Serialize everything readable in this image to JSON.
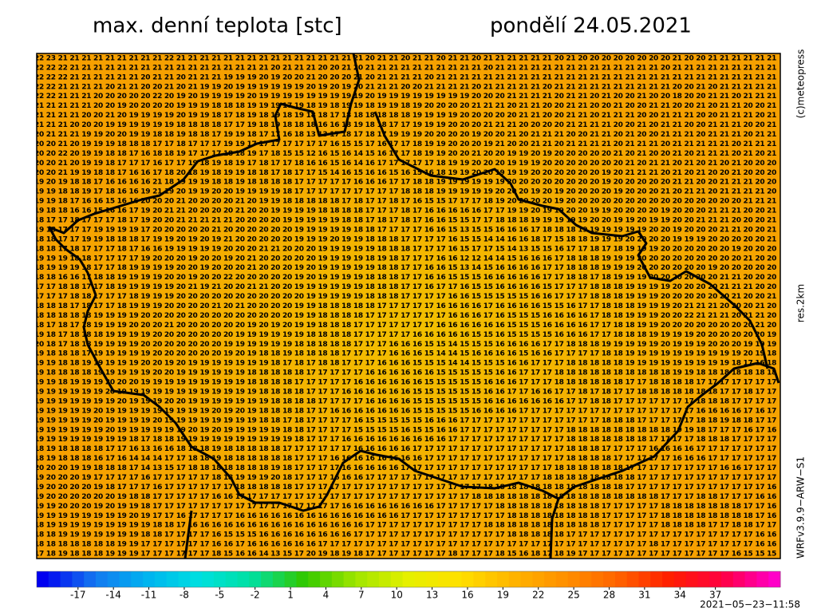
{
  "header": {
    "title": "max. denní teplota [stc]",
    "date": "pondělí 24.05.2021"
  },
  "side": {
    "copyright": "(c)meteopress",
    "resolution": "res.2km",
    "model": "WRFv3.9.9−ARW−S1"
  },
  "footer": {
    "run": "2021−05−23−11:58"
  },
  "grid": {
    "rows": [
      "22 23 21 21 21 21 21 21 21 21 21 22 21 21 21 21 21 21 21 21 21 21 21 21 21 21 21 21 20 21 21 20 21 21 20 21 21 20 21 21 21 21 21 21 20 21 20 20 20 20 20 20 20 20 21 20 20 21 21 21 21 21 21",
      "22 22 22 21 21 21 21 21 21 21 21 21 21 21 21 21 21 21 21 21 20 21 21 21 20 20 21 20 21 21 21 21 21 21 21 21 21 21 20 21 21 21 21 21 21 21 21 21 21 21 21 21 21 20 21 21 21 21 21 21 21 21 21",
      "22 22 22 21 21 21 21 21 21 20 21 21 20 21 21 21 19 19 19 20 19 20 20 21 20 20 20 21 20 21 21 21 21 20 21 21 21 21 21 21 21 21 21 21 21 21 21 21 21 21 21 21 21 21 21 21 21 21 21 21 21 21 21",
      "22 22 21 21 21 21 20 21 21 20 20 21 20 21 19 19 20 19 19 19 19 19 19 20 19 20 19 20 21 21 21 20 20 21 21 21 21 20 21 21 21 21 21 20 21 21 21 21 21 21 21 21 21 21 20 20 21 20 21 21 21 21 21",
      "22 22 21 21 21 20 20 20 20 20 22 20 19 20 19 19 19 19 20 19 19 19 19 19 19 19 19 19 20 19 19 19 19 19 19 19 19 20 20 20 21 21 21 21 20 21 21 20 21 20 20 21 20 20 18 20 20 21 21 20 21 21 21",
      "21 21 21 21 21 20 20 19 20 20 20 20 19 19 19 18 18 18 19 19 19 17 19 18 19 18 19 19 18 19 19 18 19 20 20 20 20 21 21 21 20 21 21 20 20 21 21 20 20 21 20 20 21 21 20 20 21 20 21 21 20 20 21",
      "21 21 21 21 20 20 21 20 19 19 19 19 20 19 19 18 17 18 19 18 19 18 19 18 18 17 18 18 18 18 18 18 19 19 19 19 20 20 20 20 20 21 21 20 20 21 21 20 21 21 21 20 20 21 21 21 20 20 21 21 21 20 21",
      "21 21 21 20 20 20 19 19 19 19 19 19 18 18 18 18 17 17 19 18 19 18 18 18 16 16 18 19 18 18 17 17 19 19 19 20 20 20 21 21 21 20 20 20 20 21 21 21 21 20 20 21 20 21 21 20 20 21 21 21 20 20 21",
      "20 21 21 21 19 19 20 20 19 19 18 18 19 18 18 17 19 19 18 17 17 16 18 13 13 17 18 17 18 17 19 19 19 20 20 20 20 19 20 20 21 20 21 21 21 20 20 21 21 20 21 20 20 21 21 21 20 21 21 21 20 21 21",
      "20 20 21 20 19 19 19 18 18 18 17 17 18 17 17 17 19 19 17 17 17 17 17 17 17 16 15 15 17 16 17 17 18 19 19 20 20 20 19 21 20 20 21 21 20 21 21 21 21 20 21 21 21 20 21 21 21 21 21 20 21 21 21",
      "20 20 22 20 19 19 18 18 17 16 18 18 19 17 17 17 18 18 19 17 18 15 15 12 16 15 16 14 15 16 17 17 18 19 19 20 20 21 20 20 19 19 20 19 20 20 20 20 20 21 20 21 20 20 21 20 21 21 21 20 21 20 21",
      "20 20 21 20 19 19 18 17 17 17 16 17 17 19 18 19 18 19 17 18 17 17 18 16 16 15 16 14 16 17 17 17 17 17 18 19 19 20 20 20 19 19 19 20 20 20 20 20 20 20 21 20 21 21 20 21 20 21 20 21 20 20 20",
      "20 20 21 19 19 18 18 17 16 16 17 18 20 18 19 18 19 19 18 18 17 18 17 17 15 14 16 15 16 16 15 16 15 16 18 19 19 20 20 19 19 19 20 20 20 20 20 20 19 20 21 21 21 20 21 20 21 20 20 21 20 20 20",
      "19 20 19 18 18 17 16 16 16 16 21 18 19 19 19 18 18 19 18 18 18 18 17 17 17 17 17 16 16 16 17 17 18 18 19 19 19 19 19 19 20 20 20 20 20 20 20 20 19 20 20 20 20 20 21 21 20 20 21 21 21 20 20",
      "19 19 18 18 19 17 18 16 16 19 21 19 20 19 19 20 20 19 19 19 19 18 17 17 17 17 17 17 17 17 17 18 18 18 19 19 19 19 19 20 20 20 19 20 19 20 20 20 20 19 20 20 20 21 20 21 21 20 21 21 21 21 20",
      "19 19 18 17 16 16 15 16 16 20 20 20 21 20 20 20 20 21 20 19 19 18 18 18 18 18 17 18 17 17 18 17 16 15 15 17 17 17 18 19 20 20 20 20 19 20 20 20 20 20 20 20 20 20 20 20 20 20 20 20 21 21 21",
      "19 18 18 16 16 15 16 16 17 19 20 21 21 20 20 20 20 21 20 20 19 19 19 19 18 18 18 18 17 17 17 18 17 16 16 16 16 16 17 17 19 19 20 19 19 20 20 19 19 20 20 20 20 19 20 20 20 21 21 21 20 20 21",
      "18 17 17 18 17 17 17 18 17 19 20 20 21 21 21 21 21 20 20 20 20 19 19 19 19 19 18 18 17 18 17 18 17 16 16 15 15 17 17 18 18 18 19 19 19 19 19 20 20 19 19 20 19 19 20 20 21 21 21 20 20 20 21",
      "19 18 17 17 17 19 19 19 19 17 20 20 20 20 20 21 20 20 20 20 20 20 19 19 19 19 19 18 18 17 17 17 17 16 16 15 13 15 15 16 16 16 17 18 18 18 19 19 19 19 19 19 20 20 19 20 20 20 21 21 20 20 21",
      "18 18 17 17 19 19 18 18 18 17 19 19 20 19 20 19 21 20 20 20 20 20 19 19 19 20 19 19 18 18 18 17 17 17 17 16 15 15 14 14 16 16 18 17 15 18 18 19 19 19 20 20 20 20 19 19 19 20 20 20 20 20 21",
      "18 18 17 18 17 17 17 18 17 16 16 19 19 19 19 19 20 20 20 21 21 20 20 20 19 19 19 19 19 18 18 18 17 17 17 16 15 17 17 15 14 13 15 15 16 17 17 18 17 18 19 19 19 20 20 20 20 20 20 19 20 20 20",
      "19 19 19 18 18 17 17 17 17 19 20 20 20 19 20 20 19 20 21 20 20 20 20 20 19 19 19 19 18 19 18 17 17 17 16 16 12 12 14 14 15 16 16 16 17 18 18 18 19 19 19 20 20 20 20 20 20 20 20 20 21 20 20",
      "18 19 19 19 18 17 17 18 19 19 19 19 20 20 19 20 20 20 21 20 20 20 19 20 19 19 19 19 19 18 18 17 17 16 16 15 13 14 15 16 16 16 16 17 17 18 18 18 19 19 19 20 20 20 20 20 20 19 20 20 20 20 20",
      "18 18 16 16 17 18 18 19 19 19 19 20 20 19 20 20 22 20 20 20 20 20 19 20 19 19 19 19 18 18 18 17 17 16 16 15 15 15 16 16 16 16 16 17 17 18 18 17 18 19 19 19 20 20 20 20 20 20 21 21 20 20 20",
      "17 17 18 18 17 17 18 19 19 19 19 19 20 21 19 21 20 20 21 21 20 20 19 19 19 19 19 19 18 18 18 17 17 16 17 17 16 15 15 16 16 16 16 15 17 17 17 18 18 18 19 19 19 19 20 20 20 20 21 21 21 20 20",
      "17 17 17 18 18 17 17 17 18 19 19 19 20 20 20 20 20 20 20 20 20 20 20 19 19 19 19 19 18 18 18 17 17 17 17 16 16 15 15 15 15 15 16 16 17 17 17 18 18 18 19 19 19 20 20 20 20 20 20 21 20 20 21",
      "18 18 18 17 18 17 17 18 19 19 19 20 20 20 20 21 20 21 20 20 20 20 19 19 18 18 18 18 18 17 17 17 17 17 16 16 16 16 17 16 16 16 16 15 15 16 17 17 18 18 18 19 19 19 20 21 21 21 20 20 20 21 20",
      "18 18 18 18 18 19 19 19 19 20 20 20 20 20 20 20 20 20 20 20 20 20 19 19 18 18 18 18 17 17 17 17 17 17 17 16 16 16 17 16 15 15 15 16 16 16 16 17 18 18 19 19 19 20 20 22 21 21 21 20 21 21 20",
      "18 17 18 17 18 19 19 19 20 20 20 21 20 20 20 20 20 20 19 20 19 20 19 19 18 18 18 17 17 17 17 17 17 17 16 16 16 16 16 16 15 15 15 16 16 16 16 17 17 18 18 19 19 20 20 20 20 20 20 20 20 21 20",
      "19 18 17 18 18 18 19 19 19 19 20 20 20 20 20 20 20 19 19 19 19 19 19 18 18 18 18 17 17 17 17 17 16 16 16 16 16 15 15 16 15 15 15 15 16 16 16 17 17 18 18 18 19 19 19 19 20 20 20 20 20 20 19",
      "20 18 17 18 18 19 19 19 19 20 20 20 20 20 20 20 19 19 19 19 19 19 18 18 18 18 18 17 17 17 16 16 16 15 15 14 15 15 15 16 16 16 16 17 17 18 18 18 19 19 19 19 19 20 19 19 19 20 20 20 19 19 19",
      "19 18 18 18 17 19 19 19 19 19 20 20 20 20 20 20 19 20 19 18 18 19 18 18 18 18 17 17 17 17 16 16 16 15 14 14 15 16 16 16 16 15 16 16 17 17 17 17 18 18 19 19 19 19 19 19 19 19 19 19 20 19 18",
      "19 19 18 18 19 19 19 19 19 20 20 19 20 19 19 19 19 19 19 19 18 17 18 17 18 18 17 17 17 16 16 16 15 15 15 14 14 15 15 15 16 16 17 17 17 18 18 18 18 18 19 19 19 19 19 19 19 19 19 18 17 16 18",
      "19 18 18 18 18 19 19 19 19 19 20 20 19 19 19 19 19 19 18 18 18 18 18 17 17 17 17 17 16 16 16 16 16 16 15 15 15 15 15 16 16 17 17 17 18 18 18 18 18 18 18 18 18 18 19 19 18 18 18 18 18 18 18",
      "19 19 18 19 19 19 20 20 20 19 19 19 19 19 19 19 19 19 18 18 18 18 17 17 17 17 17 16 16 16 16 16 16 15 15 15 15 15 16 16 16 17 17 17 18 18 18 18 18 18 17 17 18 18 18 18 17 17 17 17 17 17 17",
      "19 19 19 19 19 19 20 19 19 19 19 19 19 19 19 19 19 19 19 18 18 18 18 17 17 17 16 16 16 16 16 16 15 15 15 15 15 15 16 16 17 17 16 16 17 17 18 17 18 17 17 18 18 18 18 18 18 18 17 17 18 17 17",
      "19 19 19 19 19 19 19 20 19 19 19 20 20 19 19 19 19 19 19 19 18 18 18 18 17 17 17 17 16 16 16 16 15 15 15 15 15 15 16 16 16 16 16 16 16 17 17 18 18 17 17 17 17 17 17 17 18 18 18 17 17 17 17",
      "19 19 19 19 19 20 19 19 19 19 19 19 19 19 19 20 19 20 19 18 18 18 18 17 17 16 16 16 16 16 16 16 15 15 15 15 15 16 16 16 16 17 17 17 17 17 17 17 17 17 17 17 17 17 17 17 16 16 16 16 17 16 17",
      "19 19 19 19 19 20 19 19 19 19 20 19 19 19 19 19 19 19 19 18 18 17 18 17 17 17 17 16 15 15 15 15 15 16 16 16 17 17 17 17 17 17 17 17 17 17 17 17 18 18 18 17 17 17 17 17 18 18 19 18 18 17 17",
      "19 19 19 19 19 19 20 19 19 19 19 19 19 20 19 20 19 19 19 19 19 18 18 17 17 17 17 15 15 15 15 16 15 15 16 16 17 17 17 17 17 17 17 17 17 18 18 18 18 18 18 18 18 18 19 19 18 17 17 17 16 17 16",
      "19 19 19 19 19 19 19 19 18 17 18 18 19 19 19 19 19 19 19 19 19 19 18 17 17 17 16 16 16 16 16 16 16 16 16 17 17 17 17 17 17 17 17 17 17 18 18 18 18 18 18 18 17 17 17 17 18 18 18 17 17 17 17",
      "18 19 18 18 18 18 17 17 16 13 16 16 18 18 18 19 18 18 18 18 18 17 17 17 17 17 17 16 16 16 16 16 17 17 17 17 17 17 17 17 17 17 17 17 17 18 18 18 17 17 17 17 16 16 16 16 17 17 17 17 17 17 17",
      "18 19 18 18 18 16 17 16 14 14 14 17 17 18 18 19 18 18 18 18 18 18 17 17 17 16 16 16 16 16 16 16 16 17 17 17 17 17 17 17 17 17 17 17 17 18 18 18 18 17 17 17 17 17 16 16 16 17 17 17 17 17 17",
      "20 20 20 19 19 18 18 18 17 14 13 15 17 18 18 18 18 18 18 18 19 18 17 17 17 17 16 16 16 16 16 17 17 17 17 17 17 17 17 17 17 17 17 17 18 18 18 18 18 18 17 17 17 17 17 17 17 17 16 16 17 17 17",
      "19 20 20 20 19 17 17 17 17 16 17 17 17 17 17 18 18 19 19 19 20 18 17 17 17 16 16 16 17 17 17 17 17 17 17 17 17 17 17 17 17 17 17 18 18 18 18 18 18 18 18 17 17 17 17 17 17 17 17 17 17 17 17",
      "19 20 20 20 20 19 18 17 17 17 16 17 17 17 17 17 17 18 18 18 18 18 17 17 17 17 17 17 17 17 17 17 17 17 17 17 17 17 18 18 18 18 18 18 18 18 18 18 18 18 17 17 17 17 17 17 17 17 17 17 17 17 16",
      "19 20 20 20 20 20 20 19 18 18 17 17 17 17 17 16 16 17 17 17 17 17 17 17 17 17 17 17 17 17 17 17 17 17 17 17 17 18 18 18 18 18 18 18 18 18 18 18 18 18 18 18 18 17 17 17 18 18 17 17 17 16 16",
      "19 19 20 20 20 19 20 19 19 18 17 17 17 17 17 17 17 17 17 17 17 17 17 17 17 17 16 16 16 16 16 16 16 16 17 17 17 17 17 18 18 18 18 18 18 18 18 18 17 17 17 17 17 18 18 18 18 18 18 18 17 17 16",
      "19 19 19 19 19 19 19 19 20 19 17 17 16 17 17 17 17 16 16 16 16 16 16 16 16 16 16 16 16 16 16 17 17 17 17 17 17 17 17 17 18 18 18 18 18 18 18 18 17 17 17 17 17 18 18 18 18 18 18 18 18 17 16",
      "18 19 19 19 19 19 19 19 19 19 18 18 17 16 16 16 16 16 16 16 16 16 16 16 16 16 16 16 17 17 17 17 17 17 17 17 17 17 18 18 18 18 18 18 18 18 18 18 17 17 17 17 17 18 18 18 18 17 17 18 18 17 17",
      "18 18 19 19 19 19 19 19 19 18 18 17 17 17 17 16 15 15 15 16 16 16 16 16 16 16 16 17 17 17 17 17 17 17 17 17 17 17 17 17 18 18 18 18 18 17 17 17 17 17 17 17 17 17 17 17 17 17 17 17 17 16 16",
      "18 18 18 18 18 18 18 19 19 17 17 17 17 17 17 16 16 17 16 16 16 16 16 16 17 17 17 17 17 17 17 17 17 17 17 17 17 17 17 17 17 17 17 17 17 17 17 17 17 17 17 17 18 17 17 17 17 17 17 17 17 16 16",
      "17 18 19 18 18 18 19 19 19 17 17 17 17 17 17 18 15 16 16 14 13 15 17 20 19 18 19 18 17 17 17 17 17 17 17 18 17 17 17 18 15 16 18 17 18 19 17 17 17 17 17 17 17 17 17 17 17 17 17 16 15 15 15"
    ]
  },
  "colorbar": {
    "clim": [
      -20.5,
      42.5
    ],
    "colors": [
      "#0000f0",
      "#1478f0",
      "#00b4f0",
      "#00e0e0",
      "#00e0a0",
      "#30c800",
      "#a0e600",
      "#e6f000",
      "#ffe000",
      "#ffb400",
      "#ff9000",
      "#ff6400",
      "#ff1e00",
      "#ff0040",
      "#ff00c8"
    ],
    "ticks": [
      -17,
      -14,
      -11,
      -8,
      -5,
      -2,
      1,
      4,
      7,
      10,
      13,
      16,
      19,
      22,
      25,
      28,
      31,
      34,
      37
    ]
  }
}
